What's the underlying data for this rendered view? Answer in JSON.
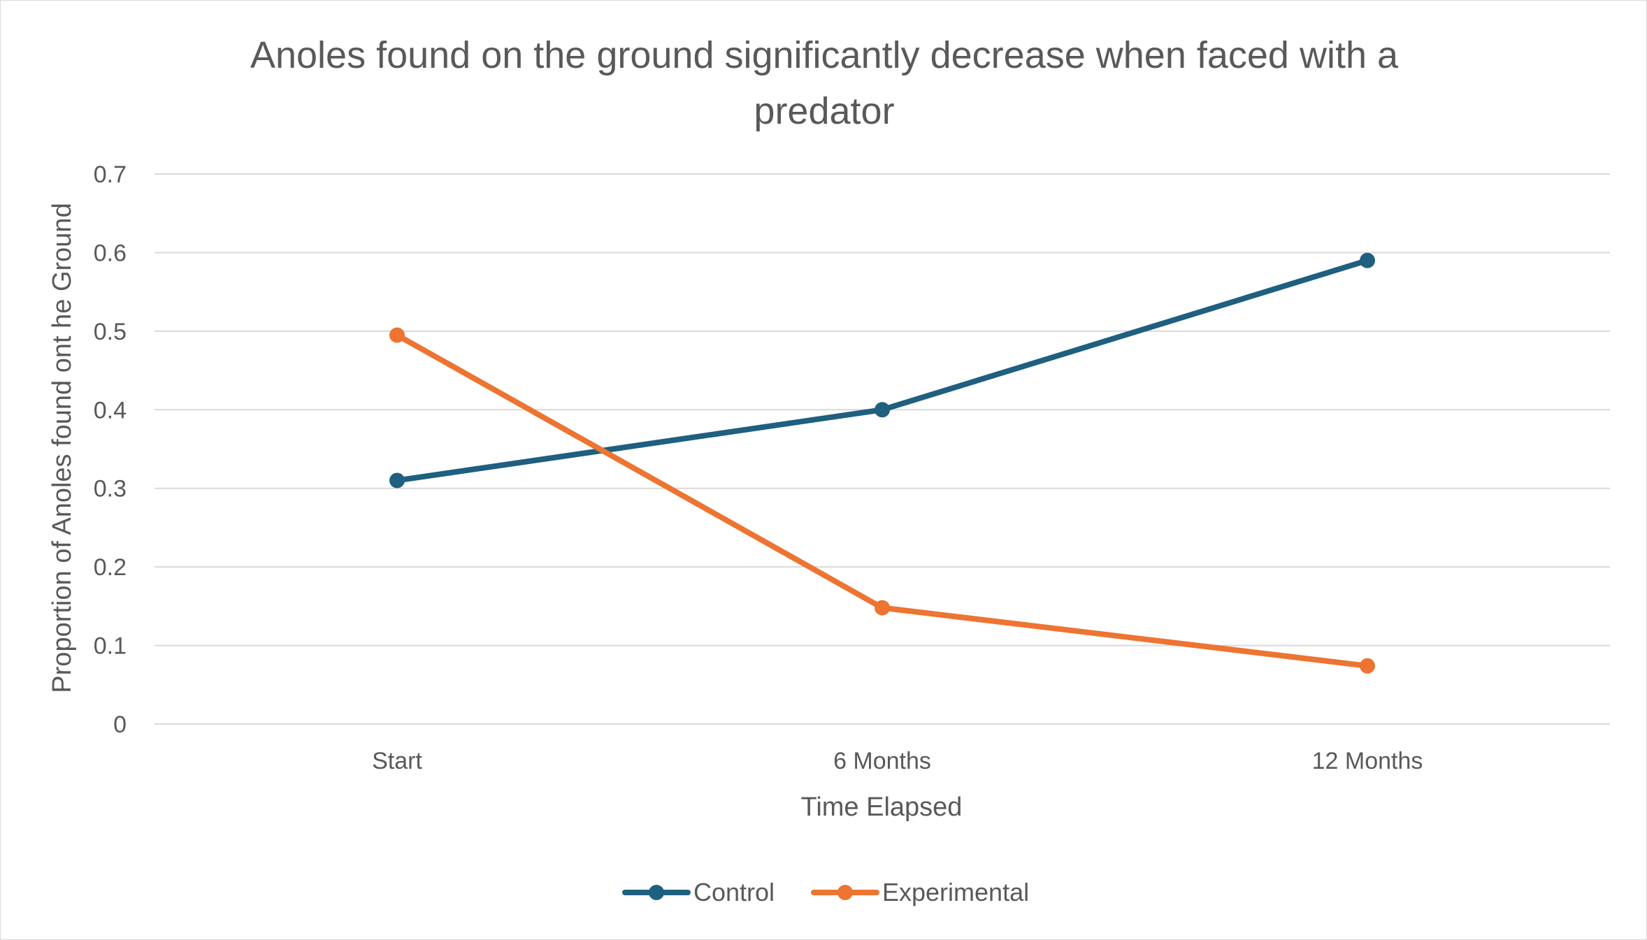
{
  "chart_data": {
    "type": "line",
    "title": "Anoles found on the ground significantly decrease when faced with a predator",
    "xlabel": "Time Elapsed",
    "ylabel": "Proportion of Anoles found ont he Ground",
    "categories": [
      "Start",
      "6 Months",
      "12 Months"
    ],
    "ylim": [
      0,
      0.7
    ],
    "yticks": [
      "0",
      "0.1",
      "0.2",
      "0.3",
      "0.4",
      "0.5",
      "0.6",
      "0.7"
    ],
    "grid": true,
    "legend_position": "bottom",
    "series": [
      {
        "name": "Control",
        "color": "#1f5f80",
        "values": [
          0.31,
          0.4,
          0.59
        ]
      },
      {
        "name": "Experimental",
        "color": "#ed7431",
        "values": [
          0.495,
          0.148,
          0.074
        ]
      }
    ]
  }
}
